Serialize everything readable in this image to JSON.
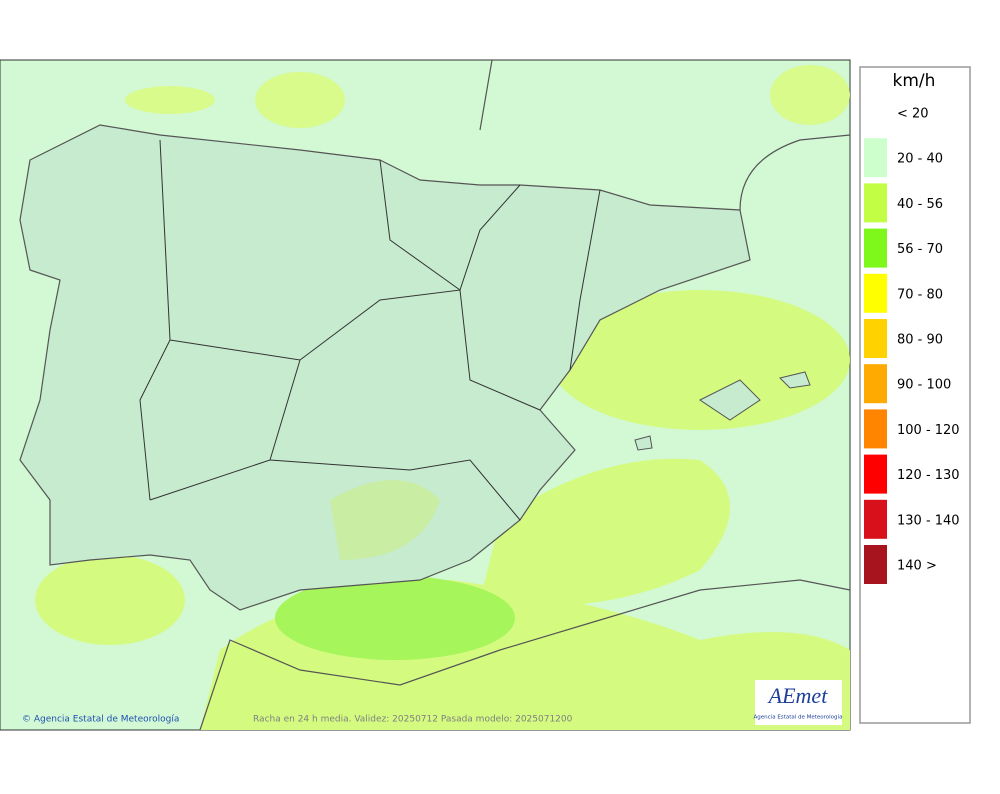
{
  "map": {
    "legend": {
      "title": "km/h",
      "items": [
        {
          "label": "< 20",
          "color": "#ffffff"
        },
        {
          "label": "20 - 40",
          "color": "#ccffcc"
        },
        {
          "label": "40 - 56",
          "color": "#c2ff44"
        },
        {
          "label": "56 - 70",
          "color": "#7ef81a"
        },
        {
          "label": "70 - 80",
          "color": "#ffff00"
        },
        {
          "label": "80 - 90",
          "color": "#ffd200"
        },
        {
          "label": "90 - 100",
          "color": "#ffaa00"
        },
        {
          "label": "100 - 120",
          "color": "#ff8400"
        },
        {
          "label": "120 - 130",
          "color": "#ff0000"
        },
        {
          "label": "130 - 140",
          "color": "#d8101c"
        },
        {
          "label": "140 >",
          "color": "#a8141e"
        }
      ]
    },
    "credit": "© Agencia Estatal de Meteorología",
    "caption": "Racha en 24 h media. Validez: 20250712 Pasada modelo: 2025071200",
    "logo": {
      "name": "AEmet",
      "subtitle": "Agencia Estatal de Meteorología"
    }
  }
}
